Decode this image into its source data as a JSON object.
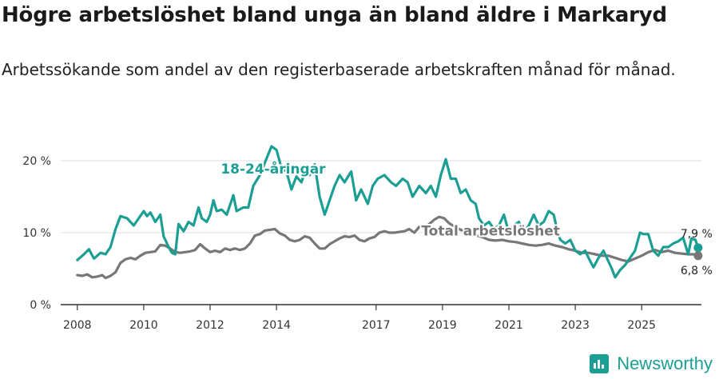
{
  "title": "Högre arbetslöshet bland unga än bland äldre i Markaryd",
  "subtitle": "Arbetssökande som andel av den registerbaserade arbetskraften månad för månad.",
  "brand": {
    "name": "Newsworthy",
    "icon": "newsworthy-logo-icon"
  },
  "colors": {
    "youth": "#1b9e94",
    "total": "#777777",
    "grid": "#dddddd",
    "axis": "#333333"
  },
  "chart_data": {
    "type": "line",
    "xlim": [
      2007.5,
      2026.8
    ],
    "ylim": [
      0,
      21
    ],
    "x_ticks": [
      {
        "value": 2008,
        "label": "2008"
      },
      {
        "value": 2010,
        "label": "2010"
      },
      {
        "value": 2012,
        "label": "2012"
      },
      {
        "value": 2014,
        "label": "2014"
      },
      {
        "value": 2017,
        "label": "2017"
      },
      {
        "value": 2019,
        "label": "2019"
      },
      {
        "value": 2021,
        "label": "2021"
      },
      {
        "value": 2023,
        "label": "2023"
      },
      {
        "value": 2025,
        "label": "2025"
      }
    ],
    "y_ticks": [
      {
        "value": 0,
        "label": "0 %"
      },
      {
        "value": 10,
        "label": "10 %"
      },
      {
        "value": 20,
        "label": "20 %"
      }
    ],
    "series": [
      {
        "name": "18-24-åringar",
        "label": "18-24-åringar",
        "color": "#1b9e94",
        "end_label": "7,9 %",
        "points": [
          [
            2008.0,
            6.2
          ],
          [
            2008.2,
            7.0
          ],
          [
            2008.35,
            7.7
          ],
          [
            2008.5,
            6.4
          ],
          [
            2008.7,
            7.2
          ],
          [
            2008.85,
            7.0
          ],
          [
            2009.0,
            8.0
          ],
          [
            2009.15,
            10.5
          ],
          [
            2009.3,
            12.3
          ],
          [
            2009.5,
            12.0
          ],
          [
            2009.7,
            11.0
          ],
          [
            2009.85,
            12.0
          ],
          [
            2010.0,
            13.0
          ],
          [
            2010.1,
            12.3
          ],
          [
            2010.2,
            12.8
          ],
          [
            2010.35,
            11.5
          ],
          [
            2010.5,
            12.5
          ],
          [
            2010.6,
            9.5
          ],
          [
            2010.75,
            8.0
          ],
          [
            2010.85,
            7.2
          ],
          [
            2010.95,
            7.0
          ],
          [
            2011.05,
            11.2
          ],
          [
            2011.2,
            10.2
          ],
          [
            2011.35,
            11.5
          ],
          [
            2011.5,
            11.0
          ],
          [
            2011.65,
            13.5
          ],
          [
            2011.75,
            12.0
          ],
          [
            2011.9,
            11.5
          ],
          [
            2012.0,
            12.5
          ],
          [
            2012.1,
            14.5
          ],
          [
            2012.2,
            13.0
          ],
          [
            2012.35,
            13.2
          ],
          [
            2012.5,
            12.5
          ],
          [
            2012.7,
            15.2
          ],
          [
            2012.8,
            13.0
          ],
          [
            2013.0,
            13.5
          ],
          [
            2013.15,
            13.5
          ],
          [
            2013.3,
            16.5
          ],
          [
            2013.5,
            18.0
          ],
          [
            2013.7,
            20.3
          ],
          [
            2013.85,
            22.0
          ],
          [
            2014.0,
            21.5
          ],
          [
            2014.15,
            19.0
          ],
          [
            2014.3,
            18.5
          ],
          [
            2014.45,
            16.0
          ],
          [
            2014.6,
            17.8
          ],
          [
            2014.75,
            17.0
          ],
          [
            2014.9,
            19.0
          ],
          [
            2015.0,
            18.0
          ],
          [
            2015.15,
            19.5
          ],
          [
            2015.3,
            15.0
          ],
          [
            2015.45,
            12.5
          ],
          [
            2015.6,
            14.5
          ],
          [
            2015.75,
            16.5
          ],
          [
            2015.9,
            18.0
          ],
          [
            2016.05,
            17.0
          ],
          [
            2016.25,
            18.5
          ],
          [
            2016.4,
            14.5
          ],
          [
            2016.55,
            16.0
          ],
          [
            2016.75,
            14.0
          ],
          [
            2016.9,
            16.5
          ],
          [
            2017.05,
            17.5
          ],
          [
            2017.25,
            18.0
          ],
          [
            2017.45,
            17.0
          ],
          [
            2017.6,
            16.5
          ],
          [
            2017.8,
            17.5
          ],
          [
            2017.95,
            17.0
          ],
          [
            2018.1,
            15.0
          ],
          [
            2018.3,
            16.5
          ],
          [
            2018.5,
            15.5
          ],
          [
            2018.65,
            16.5
          ],
          [
            2018.8,
            15.0
          ],
          [
            2018.95,
            18.0
          ],
          [
            2019.1,
            20.2
          ],
          [
            2019.25,
            17.5
          ],
          [
            2019.4,
            17.5
          ],
          [
            2019.55,
            15.5
          ],
          [
            2019.7,
            16.0
          ],
          [
            2019.85,
            14.5
          ],
          [
            2020.0,
            14.0
          ],
          [
            2020.1,
            12.0
          ],
          [
            2020.25,
            11.0
          ],
          [
            2020.4,
            11.5
          ],
          [
            2020.55,
            10.5
          ],
          [
            2020.7,
            11.0
          ],
          [
            2020.85,
            12.5
          ],
          [
            2021.0,
            10.0
          ],
          [
            2021.15,
            11.0
          ],
          [
            2021.3,
            11.5
          ],
          [
            2021.45,
            10.0
          ],
          [
            2021.6,
            11.0
          ],
          [
            2021.75,
            12.5
          ],
          [
            2021.9,
            11.0
          ],
          [
            2022.05,
            11.5
          ],
          [
            2022.2,
            13.0
          ],
          [
            2022.35,
            12.5
          ],
          [
            2022.45,
            10.5
          ],
          [
            2022.55,
            9.0
          ],
          [
            2022.7,
            8.5
          ],
          [
            2022.85,
            9.0
          ],
          [
            2023.0,
            7.5
          ],
          [
            2023.15,
            7.0
          ],
          [
            2023.3,
            7.5
          ],
          [
            2023.4,
            6.5
          ],
          [
            2023.55,
            5.2
          ],
          [
            2023.7,
            6.5
          ],
          [
            2023.85,
            7.5
          ],
          [
            2024.0,
            6.0
          ],
          [
            2024.1,
            5.0
          ],
          [
            2024.2,
            3.8
          ],
          [
            2024.35,
            4.8
          ],
          [
            2024.5,
            5.5
          ],
          [
            2024.65,
            6.5
          ],
          [
            2024.8,
            7.5
          ],
          [
            2024.95,
            10.0
          ],
          [
            2025.05,
            9.8
          ],
          [
            2025.2,
            9.8
          ],
          [
            2025.35,
            7.5
          ],
          [
            2025.5,
            6.8
          ],
          [
            2025.65,
            8.0
          ],
          [
            2025.8,
            8.0
          ],
          [
            2025.95,
            8.5
          ],
          [
            2026.1,
            8.8
          ],
          [
            2026.25,
            9.3
          ],
          [
            2026.4,
            7.0
          ],
          [
            2026.5,
            9.2
          ],
          [
            2026.62,
            9.0
          ],
          [
            2026.7,
            7.9
          ]
        ]
      },
      {
        "name": "Total arbetslöshet",
        "label": "Total arbetslöshet",
        "color": "#777777",
        "end_label": "6,8 %",
        "points": [
          [
            2008.0,
            4.1
          ],
          [
            2008.15,
            4.0
          ],
          [
            2008.3,
            4.2
          ],
          [
            2008.45,
            3.8
          ],
          [
            2008.6,
            3.9
          ],
          [
            2008.75,
            4.1
          ],
          [
            2008.85,
            3.7
          ],
          [
            2009.0,
            4.0
          ],
          [
            2009.15,
            4.5
          ],
          [
            2009.3,
            5.8
          ],
          [
            2009.45,
            6.3
          ],
          [
            2009.6,
            6.5
          ],
          [
            2009.75,
            6.3
          ],
          [
            2009.9,
            6.8
          ],
          [
            2010.05,
            7.2
          ],
          [
            2010.2,
            7.3
          ],
          [
            2010.35,
            7.4
          ],
          [
            2010.5,
            8.3
          ],
          [
            2010.65,
            8.2
          ],
          [
            2010.8,
            7.8
          ],
          [
            2010.95,
            7.3
          ],
          [
            2011.1,
            7.2
          ],
          [
            2011.25,
            7.3
          ],
          [
            2011.4,
            7.4
          ],
          [
            2011.55,
            7.6
          ],
          [
            2011.7,
            8.4
          ],
          [
            2011.85,
            7.8
          ],
          [
            2012.0,
            7.3
          ],
          [
            2012.15,
            7.5
          ],
          [
            2012.3,
            7.3
          ],
          [
            2012.45,
            7.8
          ],
          [
            2012.6,
            7.6
          ],
          [
            2012.75,
            7.8
          ],
          [
            2012.9,
            7.6
          ],
          [
            2013.05,
            7.8
          ],
          [
            2013.2,
            8.5
          ],
          [
            2013.35,
            9.6
          ],
          [
            2013.5,
            9.8
          ],
          [
            2013.65,
            10.3
          ],
          [
            2013.8,
            10.4
          ],
          [
            2013.95,
            10.5
          ],
          [
            2014.1,
            9.9
          ],
          [
            2014.25,
            9.6
          ],
          [
            2014.4,
            9.0
          ],
          [
            2014.55,
            8.8
          ],
          [
            2014.7,
            9.0
          ],
          [
            2014.85,
            9.5
          ],
          [
            2015.0,
            9.3
          ],
          [
            2015.15,
            8.5
          ],
          [
            2015.3,
            7.8
          ],
          [
            2015.45,
            7.8
          ],
          [
            2015.6,
            8.4
          ],
          [
            2015.75,
            8.8
          ],
          [
            2015.9,
            9.2
          ],
          [
            2016.05,
            9.5
          ],
          [
            2016.2,
            9.4
          ],
          [
            2016.35,
            9.6
          ],
          [
            2016.5,
            9.0
          ],
          [
            2016.65,
            8.8
          ],
          [
            2016.8,
            9.2
          ],
          [
            2016.95,
            9.4
          ],
          [
            2017.1,
            10.0
          ],
          [
            2017.25,
            10.2
          ],
          [
            2017.4,
            10.0
          ],
          [
            2017.55,
            10.0
          ],
          [
            2017.7,
            10.1
          ],
          [
            2017.85,
            10.2
          ],
          [
            2018.0,
            10.5
          ],
          [
            2018.15,
            10.0
          ],
          [
            2018.3,
            10.8
          ],
          [
            2018.45,
            10.6
          ],
          [
            2018.6,
            11.2
          ],
          [
            2018.75,
            11.8
          ],
          [
            2018.9,
            12.2
          ],
          [
            2019.05,
            12.0
          ],
          [
            2019.2,
            11.3
          ],
          [
            2019.35,
            10.9
          ],
          [
            2019.5,
            10.5
          ],
          [
            2019.65,
            10.2
          ],
          [
            2019.8,
            10.0
          ],
          [
            2020.0,
            9.6
          ],
          [
            2020.2,
            9.4
          ],
          [
            2020.4,
            9.0
          ],
          [
            2020.6,
            8.9
          ],
          [
            2020.8,
            9.0
          ],
          [
            2021.0,
            8.8
          ],
          [
            2021.2,
            8.7
          ],
          [
            2021.4,
            8.5
          ],
          [
            2021.6,
            8.3
          ],
          [
            2021.8,
            8.2
          ],
          [
            2022.0,
            8.3
          ],
          [
            2022.2,
            8.5
          ],
          [
            2022.4,
            8.2
          ],
          [
            2022.6,
            8.0
          ],
          [
            2022.8,
            7.7
          ],
          [
            2023.0,
            7.5
          ],
          [
            2023.2,
            7.2
          ],
          [
            2023.4,
            7.2
          ],
          [
            2023.6,
            7.0
          ],
          [
            2023.8,
            6.8
          ],
          [
            2024.0,
            6.8
          ],
          [
            2024.2,
            6.5
          ],
          [
            2024.4,
            6.2
          ],
          [
            2024.6,
            6.0
          ],
          [
            2024.8,
            6.4
          ],
          [
            2025.0,
            6.8
          ],
          [
            2025.2,
            7.3
          ],
          [
            2025.4,
            7.6
          ],
          [
            2025.6,
            7.3
          ],
          [
            2025.8,
            7.5
          ],
          [
            2026.0,
            7.2
          ],
          [
            2026.2,
            7.1
          ],
          [
            2026.4,
            7.0
          ],
          [
            2026.55,
            7.0
          ],
          [
            2026.7,
            6.8
          ]
        ]
      }
    ]
  }
}
